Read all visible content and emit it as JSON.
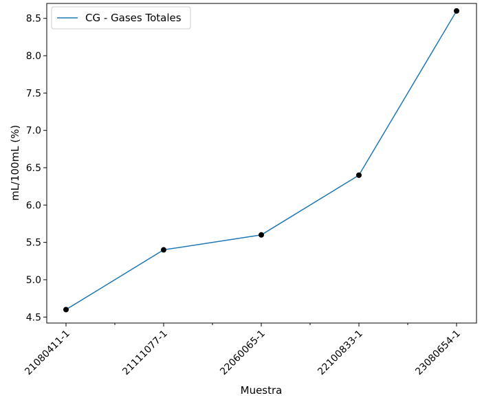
{
  "chart_data": {
    "type": "line",
    "title": "",
    "xlabel": "Muestra",
    "ylabel": "mL/100mL (%)",
    "categories": [
      "21080411-1",
      "21111077-1",
      "22060065-1",
      "22100833-1",
      "23080654-1"
    ],
    "series": [
      {
        "name": "CG - Gases Totales",
        "values": [
          4.6,
          5.4,
          5.6,
          6.4,
          8.6
        ],
        "color": "#1f77b4",
        "marker_color": "#000000"
      }
    ],
    "ylim": [
      4.42,
      8.7
    ],
    "yticks": [
      4.5,
      5.0,
      5.5,
      6.0,
      6.5,
      7.0,
      7.5,
      8.0,
      8.5
    ],
    "ytick_labels": [
      "4.5",
      "5.0",
      "5.5",
      "6.0",
      "6.5",
      "7.0",
      "7.5",
      "8.0",
      "8.5"
    ],
    "minor_xticks": true,
    "grid": false,
    "legend_position": "upper-left"
  }
}
